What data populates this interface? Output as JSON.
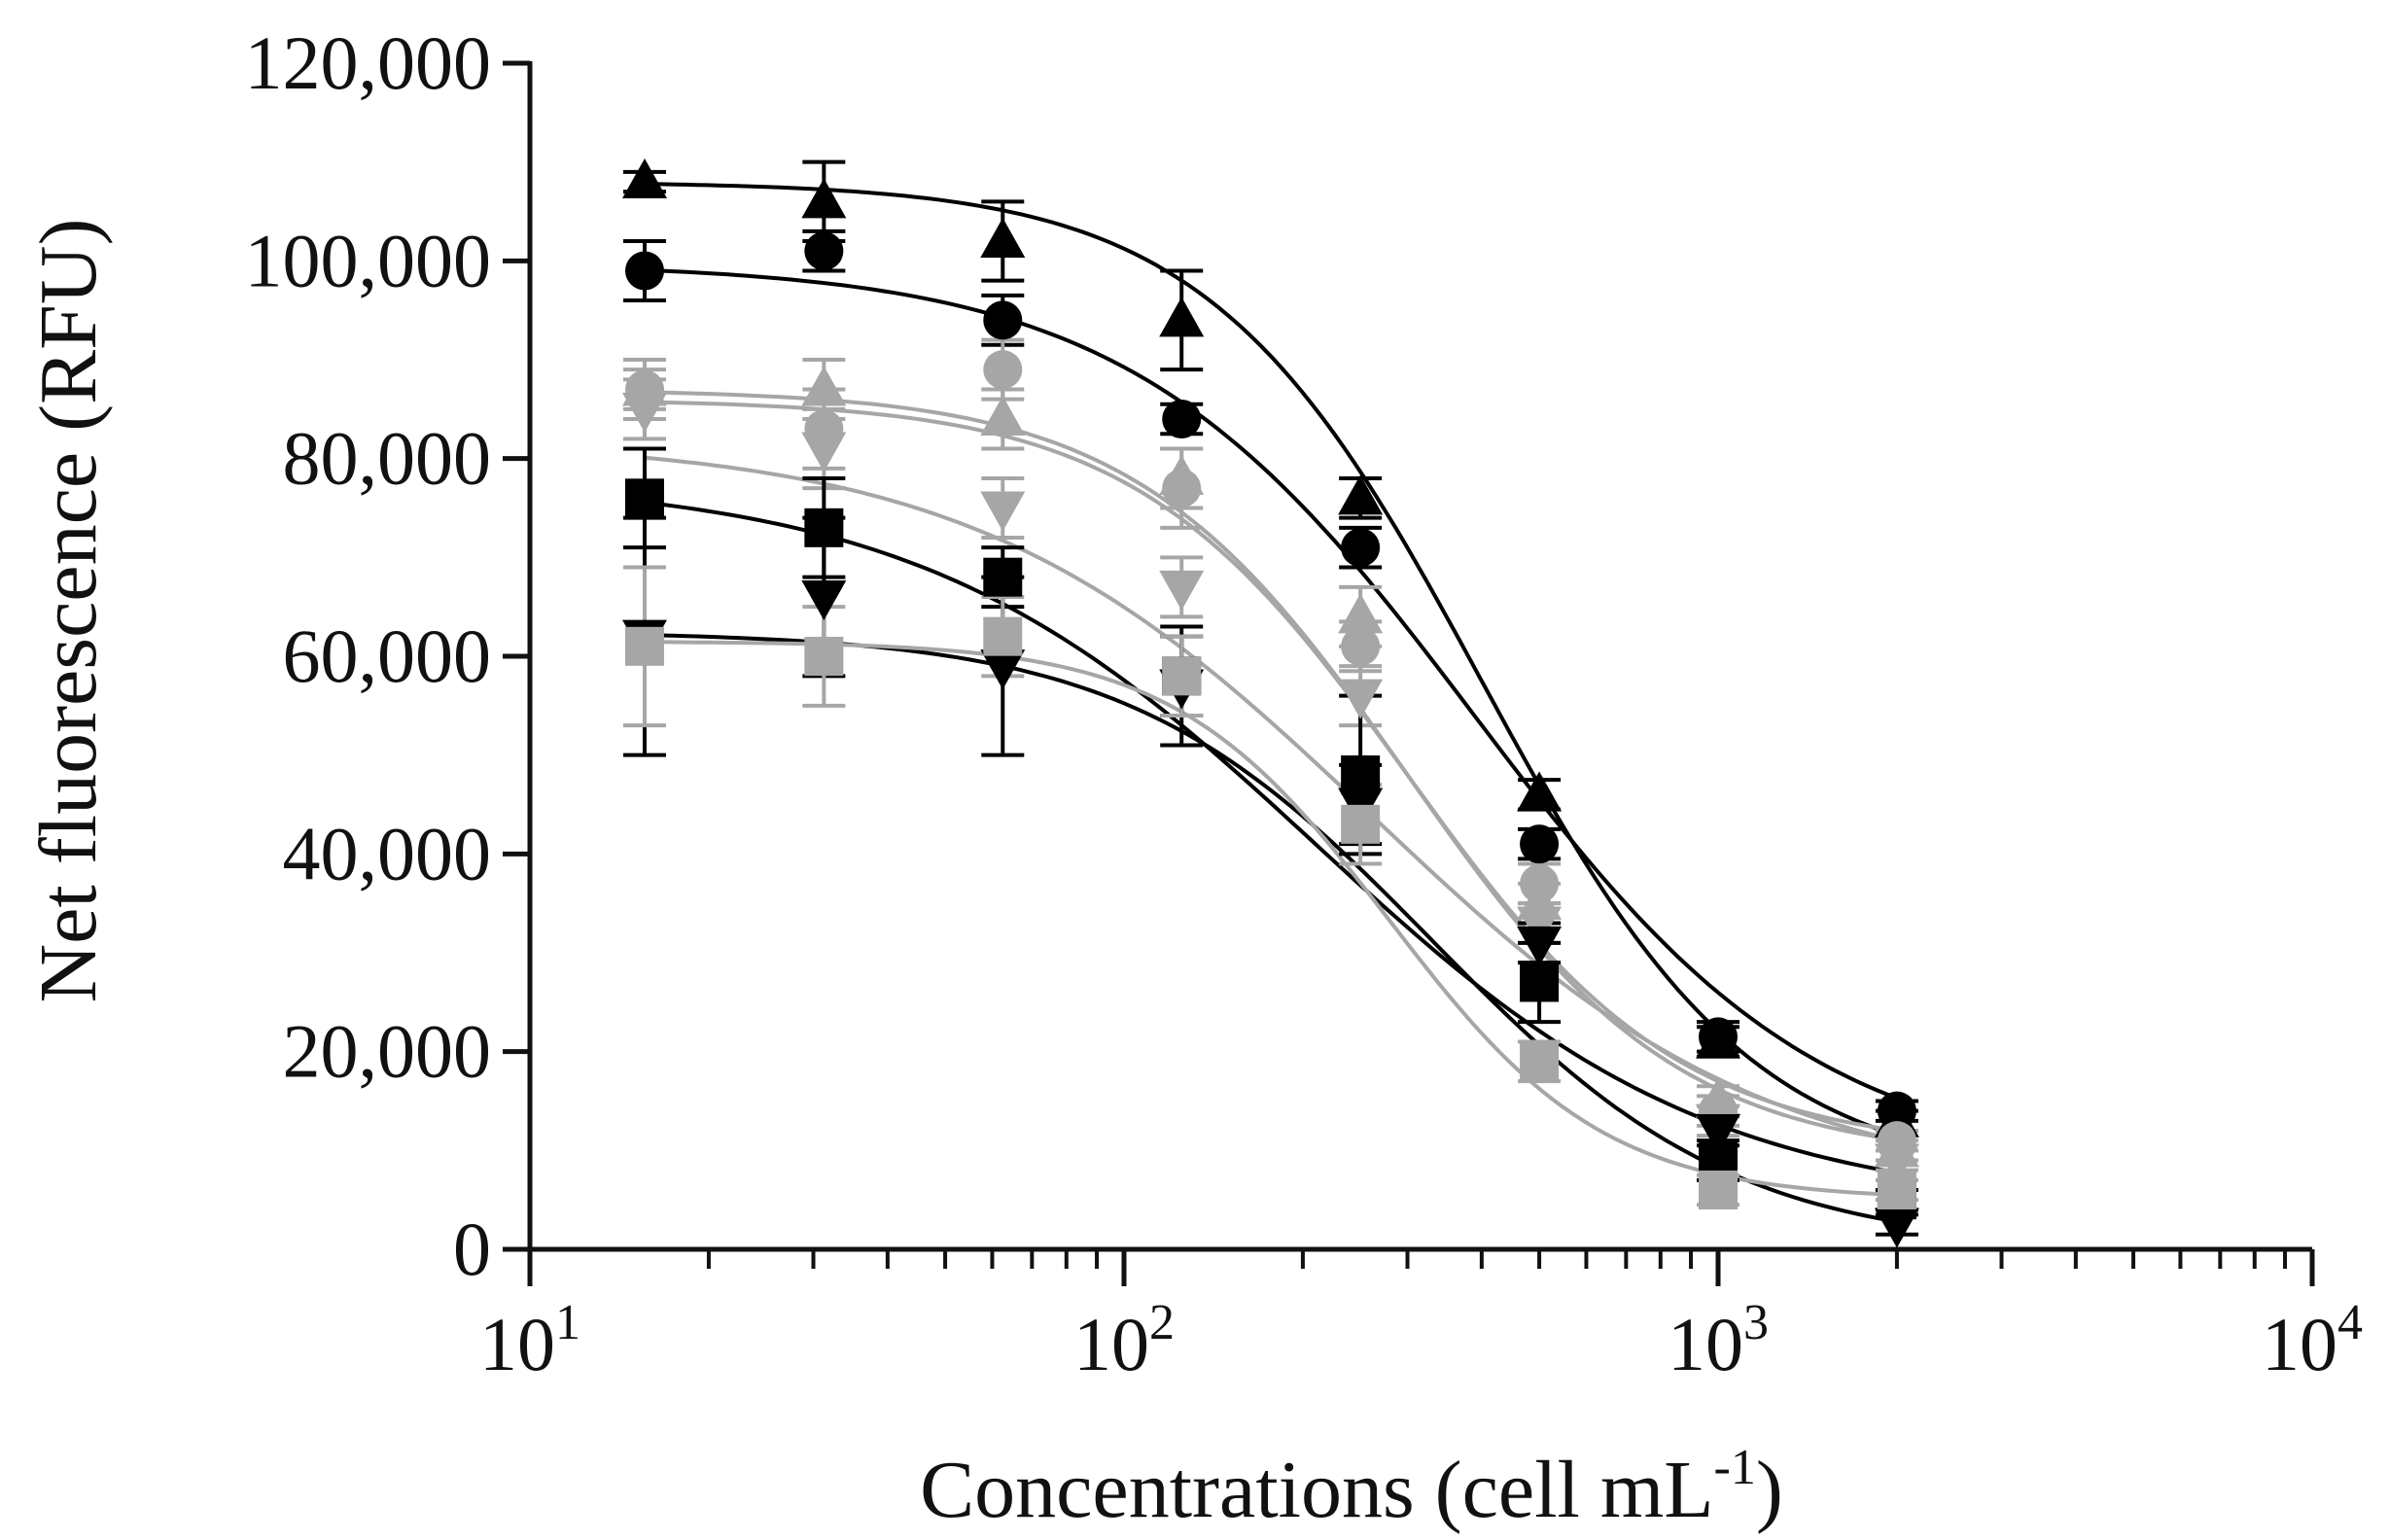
{
  "chart_data": {
    "type": "scatter",
    "subtype": "dose-response with fitted sigmoid curves and error bars",
    "title": "",
    "xlabel": "Concentrations (cell mL",
    "xlabel_superscript": "-1",
    "xlabel_suffix": ")",
    "ylabel": "Net fluorescence (RFU)",
    "x_scale": "log10",
    "xlim": [
      10,
      10000
    ],
    "ylim": [
      0,
      120000
    ],
    "x_ticks": [
      {
        "base": "10",
        "exp": "1"
      },
      {
        "base": "10",
        "exp": "2"
      },
      {
        "base": "10",
        "exp": "3"
      },
      {
        "base": "10",
        "exp": "4"
      }
    ],
    "y_ticks": [
      "0",
      "20,000",
      "40,000",
      "60,000",
      "80,000",
      "100,000",
      "120,000"
    ],
    "x": [
      15.6,
      31.25,
      62.5,
      125,
      250,
      500,
      1000,
      2000
    ],
    "colors": {
      "black": "#000000",
      "gray": "#a6a6a6",
      "axis": "#111111"
    },
    "series": [
      {
        "name": "black triangle",
        "marker": "triangle-up",
        "color": "#000000",
        "values": [
          108000,
          106000,
          102000,
          94000,
          76000,
          46000,
          21000,
          13000
        ],
        "errors": [
          1000,
          4000,
          4000,
          5000,
          2000,
          1500,
          1500,
          1000
        ],
        "fit": {
          "bottom": 7000,
          "top": 108000,
          "ec50": 400,
          "hill": 1.9
        }
      },
      {
        "name": "black circle",
        "marker": "circle",
        "color": "#000000",
        "values": [
          99000,
          101000,
          94000,
          84000,
          71000,
          41000,
          21500,
          14000
        ],
        "errors": [
          3000,
          2000,
          2500,
          1500,
          2000,
          1500,
          1500,
          1000
        ],
        "fit": {
          "bottom": 8000,
          "top": 99800,
          "ec50": 390,
          "hill": 1.5
        }
      },
      {
        "name": "gray circle",
        "marker": "circle",
        "color": "#a6a6a6",
        "values": [
          87000,
          83000,
          89000,
          77000,
          61000,
          37000,
          14000,
          11000
        ],
        "errors": [
          2000,
          4000,
          3000,
          4000,
          2500,
          2000,
          1500,
          1000
        ],
        "fit": {
          "bottom": 10000,
          "top": 86000,
          "ec50": 300,
          "hill": 1.9
        }
      },
      {
        "name": "gray triangle",
        "marker": "triangle-up",
        "color": "#a6a6a6",
        "values": [
          87000,
          87000,
          84000,
          78000,
          64000,
          35000,
          15000,
          10000
        ],
        "errors": [
          3000,
          3000,
          3000,
          3000,
          3000,
          2000,
          1500,
          1000
        ],
        "fit": {
          "bottom": 9000,
          "top": 87000,
          "ec50": 300,
          "hill": 1.9
        }
      },
      {
        "name": "gray inverted triangle",
        "marker": "triangle-down",
        "color": "#a6a6a6",
        "values": [
          85000,
          81000,
          75000,
          67000,
          56000,
          33000,
          13000,
          9000
        ],
        "errors": [
          3000,
          4000,
          3000,
          3000,
          3000,
          2000,
          1500,
          1000
        ],
        "fit": {
          "bottom": 6000,
          "top": 82000,
          "ec50": 260,
          "hill": 1.3
        }
      },
      {
        "name": "black square",
        "marker": "square",
        "color": "#000000",
        "values": [
          76000,
          73000,
          68000,
          58000,
          48000,
          27000,
          9000,
          5000
        ],
        "errors": [
          5000,
          5000,
          3000,
          4000,
          8000,
          4000,
          2000,
          1000
        ],
        "fit": {
          "bottom": 4000,
          "top": 78000,
          "ec50": 210,
          "hill": 1.3
        }
      },
      {
        "name": "black inverted triangle",
        "marker": "triangle-down",
        "color": "#000000",
        "values": [
          62000,
          66000,
          59000,
          57000,
          45000,
          31000,
          12000,
          2500
        ],
        "errors": [
          12000,
          8000,
          9000,
          6000,
          4000,
          2000,
          1500,
          1000
        ],
        "fit": {
          "bottom": 0,
          "top": 62500,
          "ec50": 330,
          "hill": 1.7
        }
      },
      {
        "name": "gray square",
        "marker": "square",
        "color": "#a6a6a6",
        "values": [
          61000,
          60000,
          62000,
          58000,
          43000,
          19000,
          6000,
          6000
        ],
        "errors": [
          8000,
          5000,
          4000,
          4000,
          4000,
          2000,
          1500,
          1000
        ],
        "fit": {
          "bottom": 5000,
          "top": 61500,
          "ec50": 280,
          "hill": 2.4
        }
      }
    ]
  }
}
